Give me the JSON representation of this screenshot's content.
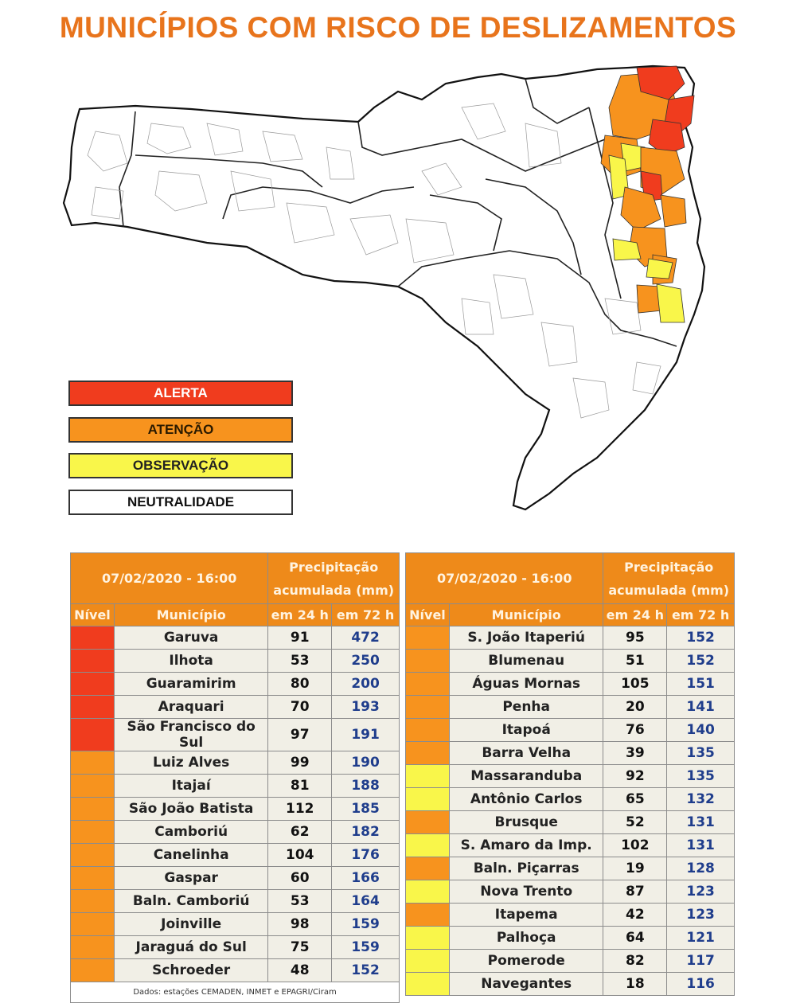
{
  "title": "MUNICÍPIOS COM RISCO DE DESLIZAMENTOS",
  "colors": {
    "alerta": "#f03c1e",
    "atencao": "#f7931e",
    "observacao": "#f9f64a",
    "neutralidade": "#ffffff",
    "title": "#e8741c",
    "header": "#ee8a1a"
  },
  "legend": [
    {
      "label": "ALERTA",
      "level": "alerta"
    },
    {
      "label": "ATENÇÃO",
      "level": "atencao"
    },
    {
      "label": "OBSERVAÇÃO",
      "level": "observacao"
    },
    {
      "label": "NEUTRALIDADE",
      "level": "neutralidade"
    }
  ],
  "table_header": {
    "datetime": "07/02/2020 - 16:00",
    "precip_line1": "Precipitação",
    "precip_line2": "acumulada (mm)",
    "nivel": "Nível",
    "municipio": "Município",
    "em24": "em 24 h",
    "em72": "em 72 h"
  },
  "left_table": [
    {
      "level": "alerta",
      "municipio": "Garuva",
      "h24": "91",
      "h72": "472"
    },
    {
      "level": "alerta",
      "municipio": "Ilhota",
      "h24": "53",
      "h72": "250"
    },
    {
      "level": "alerta",
      "municipio": "Guaramirim",
      "h24": "80",
      "h72": "200"
    },
    {
      "level": "alerta",
      "municipio": "Araquari",
      "h24": "70",
      "h72": "193"
    },
    {
      "level": "alerta",
      "municipio": "São Francisco do Sul",
      "h24": "97",
      "h72": "191"
    },
    {
      "level": "atencao",
      "municipio": "Luiz Alves",
      "h24": "99",
      "h72": "190"
    },
    {
      "level": "atencao",
      "municipio": "Itajaí",
      "h24": "81",
      "h72": "188"
    },
    {
      "level": "atencao",
      "municipio": "São João Batista",
      "h24": "112",
      "h72": "185"
    },
    {
      "level": "atencao",
      "municipio": "Camboriú",
      "h24": "62",
      "h72": "182"
    },
    {
      "level": "atencao",
      "municipio": "Canelinha",
      "h24": "104",
      "h72": "176"
    },
    {
      "level": "atencao",
      "municipio": "Gaspar",
      "h24": "60",
      "h72": "166"
    },
    {
      "level": "atencao",
      "municipio": "Baln. Camboriú",
      "h24": "53",
      "h72": "164"
    },
    {
      "level": "atencao",
      "municipio": "Joinville",
      "h24": "98",
      "h72": "159"
    },
    {
      "level": "atencao",
      "municipio": "Jaraguá do Sul",
      "h24": "75",
      "h72": "159"
    },
    {
      "level": "atencao",
      "municipio": "Schroeder",
      "h24": "48",
      "h72": "152"
    }
  ],
  "right_table": [
    {
      "level": "atencao",
      "municipio": "S. João Itaperiú",
      "h24": "95",
      "h72": "152"
    },
    {
      "level": "atencao",
      "municipio": "Blumenau",
      "h24": "51",
      "h72": "152"
    },
    {
      "level": "atencao",
      "municipio": "Águas Mornas",
      "h24": "105",
      "h72": "151"
    },
    {
      "level": "atencao",
      "municipio": "Penha",
      "h24": "20",
      "h72": "141"
    },
    {
      "level": "atencao",
      "municipio": "Itapoá",
      "h24": "76",
      "h72": "140"
    },
    {
      "level": "atencao",
      "municipio": "Barra Velha",
      "h24": "39",
      "h72": "135"
    },
    {
      "level": "observacao",
      "municipio": "Massaranduba",
      "h24": "92",
      "h72": "135"
    },
    {
      "level": "observacao",
      "municipio": "Antônio Carlos",
      "h24": "65",
      "h72": "132"
    },
    {
      "level": "atencao",
      "municipio": "Brusque",
      "h24": "52",
      "h72": "131"
    },
    {
      "level": "observacao",
      "municipio": "S. Amaro da Imp.",
      "h24": "102",
      "h72": "131"
    },
    {
      "level": "atencao",
      "municipio": "Baln. Piçarras",
      "h24": "19",
      "h72": "128"
    },
    {
      "level": "observacao",
      "municipio": "Nova Trento",
      "h24": "87",
      "h72": "123"
    },
    {
      "level": "atencao",
      "municipio": "Itapema",
      "h24": "42",
      "h72": "123"
    },
    {
      "level": "observacao",
      "municipio": "Palhoça",
      "h24": "64",
      "h72": "121"
    },
    {
      "level": "observacao",
      "municipio": "Pomerode",
      "h24": "82",
      "h72": "117"
    },
    {
      "level": "observacao",
      "municipio": "Navegantes",
      "h24": "18",
      "h72": "116"
    }
  ],
  "footnote": "Dados: estações CEMADEN, INMET e EPAGRI/Ciram"
}
